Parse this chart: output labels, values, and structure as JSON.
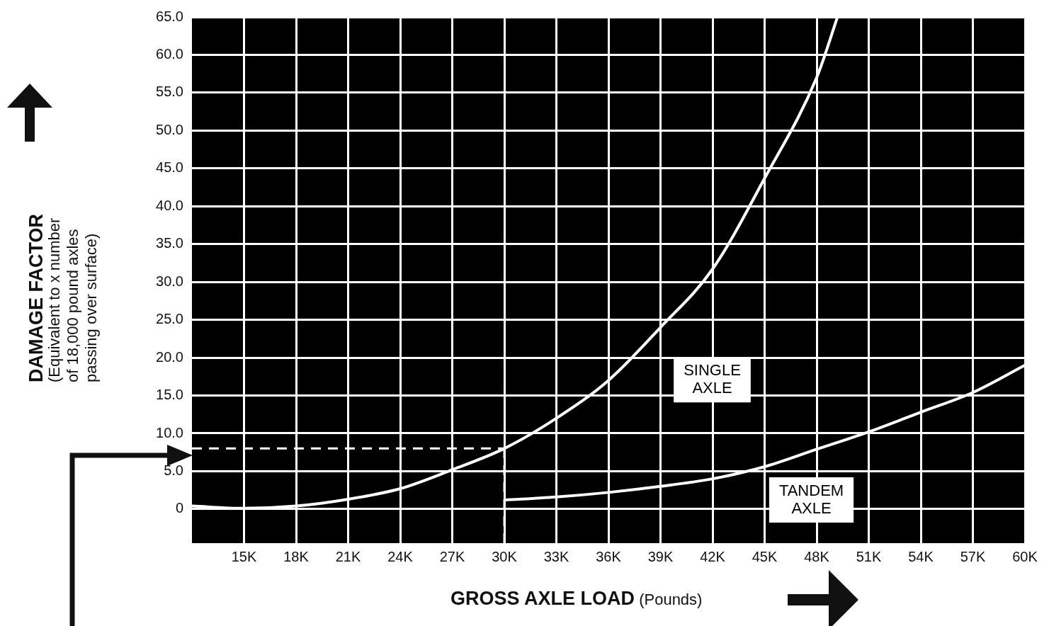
{
  "chart_data": {
    "type": "line",
    "xlabel": "GROSS AXLE LOAD (Pounds)",
    "ylabel": "DAMAGE FACTOR (Equivalent to x number of 18,000 pound axles passing over surface)",
    "series": [
      {
        "name": "SINGLE AXLE",
        "color": "#ffffff",
        "x": [
          12000,
          15000,
          18000,
          21000,
          24000,
          27000,
          30000,
          33000,
          36000,
          39000,
          42000,
          45000,
          48000,
          49200
        ],
        "values": [
          0.4,
          0.1,
          0.4,
          1.3,
          2.7,
          5.2,
          8,
          12,
          17,
          24,
          31.7,
          43.7,
          57,
          65
        ]
      },
      {
        "name": "TANDEM AXLE",
        "color": "#ffffff",
        "x": [
          30000,
          33000,
          36000,
          39000,
          42000,
          45000,
          48000,
          51000,
          54000,
          57000,
          60000
        ],
        "values": [
          1.2,
          1.6,
          2.2,
          3,
          4,
          5.6,
          7.9,
          10.2,
          12.8,
          15.4,
          19
        ]
      }
    ],
    "xlim": [
      12000,
      60000
    ],
    "xticks": [
      {
        "value": 15000,
        "label": "15K"
      },
      {
        "value": 18000,
        "label": "18K"
      },
      {
        "value": 21000,
        "label": "21K"
      },
      {
        "value": 24000,
        "label": "24K"
      },
      {
        "value": 27000,
        "label": "27K"
      },
      {
        "value": 30000,
        "label": "30K"
      },
      {
        "value": 33000,
        "label": "33K"
      },
      {
        "value": 36000,
        "label": "36K"
      },
      {
        "value": 39000,
        "label": "39K"
      },
      {
        "value": 42000,
        "label": "42K"
      },
      {
        "value": 45000,
        "label": "45K"
      },
      {
        "value": 48000,
        "label": "48K"
      },
      {
        "value": 51000,
        "label": "51K"
      },
      {
        "value": 54000,
        "label": "54K"
      },
      {
        "value": 57000,
        "label": "57K"
      },
      {
        "value": 60000,
        "label": "60K"
      }
    ],
    "ylim": [
      -4.5,
      65
    ],
    "yticks": [
      0,
      {
        "value": 5,
        "label": "5.0"
      },
      {
        "value": 10,
        "label": "10.0"
      },
      {
        "value": 15,
        "label": "15.0"
      },
      {
        "value": 20,
        "label": "20.0"
      },
      {
        "value": 25,
        "label": "25.0"
      },
      {
        "value": 30,
        "label": "30.0"
      },
      {
        "value": 35,
        "label": "35.0"
      },
      {
        "value": 40,
        "label": "40.0"
      },
      {
        "value": 45,
        "label": "45.0"
      },
      {
        "value": 50,
        "label": "50.0"
      },
      {
        "value": 55,
        "label": "55.0"
      },
      {
        "value": 60,
        "label": "60.0"
      },
      {
        "value": 65,
        "label": "65.0"
      }
    ],
    "ref_lines": [
      {
        "axis": "y",
        "value": 8,
        "color": "#ffffff",
        "line_style": "dashed"
      },
      {
        "axis": "x",
        "value": 30000,
        "color": "#ffffff",
        "line_style": "dashed"
      }
    ],
    "grid": true,
    "legend": false,
    "marker": "none",
    "line_style": "solid"
  }
}
